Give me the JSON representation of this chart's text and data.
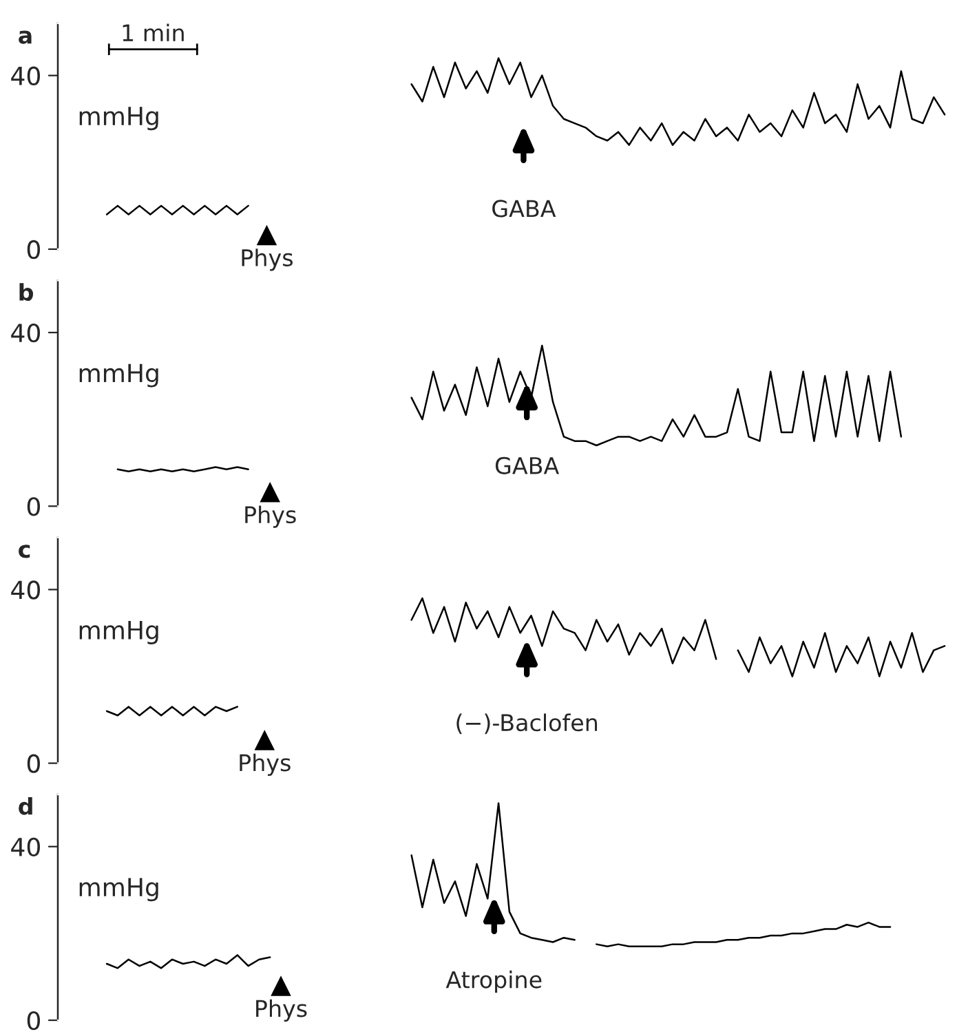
{
  "chart_data": [
    {
      "type": "line",
      "title": "a",
      "tick_labels": "y",
      "ylim": [
        0,
        52
      ],
      "yticks": [
        0,
        40
      ],
      "categories": [
        null,
        null,
        null,
        null,
        null,
        null,
        null,
        null,
        null,
        null,
        null,
        null,
        null,
        null,
        null,
        null,
        null,
        null,
        null,
        null,
        null,
        null,
        null,
        null,
        null,
        null,
        null,
        null,
        null,
        null,
        null,
        null,
        null,
        null,
        null,
        null,
        null,
        null,
        null,
        null,
        null,
        null,
        null,
        null,
        null,
        null,
        null,
        null,
        null,
        null,
        null,
        null,
        null,
        null,
        null,
        null,
        null,
        null,
        null,
        null,
        null,
        null,
        null,
        null,
        null,
        null,
        null,
        null,
        null,
        null,
        null,
        null,
        null,
        null,
        null,
        null,
        null,
        null,
        null,
        null,
        null,
        null
      ],
      "series": [
        {
          "color": "#000000",
          "values": [
            null,
            null,
            null,
            null,
            8,
            10,
            8,
            10,
            8,
            10,
            8,
            10,
            8,
            10,
            8,
            10,
            8,
            10,
            null,
            null,
            null,
            null,
            null,
            null,
            null,
            null,
            null,
            null,
            null,
            null,
            null,
            null,
            null,
            null,
            null,
            null,
            null,
            null,
            null,
            null,
            null,
            null,
            null,
            null,
            null,
            null,
            null,
            null,
            null,
            null,
            null,
            null,
            null,
            null,
            null,
            null,
            null,
            null,
            null,
            null,
            null,
            null,
            null,
            null,
            null,
            null,
            null,
            null,
            null,
            null,
            null,
            null,
            null,
            null,
            null,
            null,
            null,
            null,
            null,
            null,
            null,
            null
          ]
        },
        {
          "color": "#000000",
          "values": [
            null,
            null,
            null,
            null,
            null,
            null,
            null,
            null,
            null,
            null,
            null,
            null,
            null,
            null,
            null,
            null,
            null,
            null,
            null,
            null,
            null,
            null,
            null,
            null,
            null,
            null,
            null,
            null,
            null,
            null,
            null,
            null,
            38,
            34,
            42,
            35,
            43,
            37,
            41,
            36,
            44,
            38,
            43,
            35,
            40,
            33,
            30,
            29,
            28,
            26,
            25,
            27,
            24,
            28,
            25,
            29,
            24,
            27,
            25,
            30,
            26,
            28,
            25,
            31,
            27,
            29,
            26,
            32,
            28,
            36,
            29,
            31,
            27,
            38,
            30,
            33,
            28,
            41,
            30,
            29,
            35,
            31
          ]
        }
      ],
      "annotations": [
        "mmHg",
        "Phys",
        "GABA",
        "1 min"
      ]
    },
    {
      "type": "line",
      "title": "b",
      "tick_labels": "y",
      "ylim": [
        0,
        52
      ],
      "yticks": [
        0,
        40
      ],
      "categories": [
        null,
        null,
        null,
        null,
        null,
        null,
        null,
        null,
        null,
        null,
        null,
        null,
        null,
        null,
        null,
        null,
        null,
        null,
        null,
        null,
        null,
        null,
        null,
        null,
        null,
        null,
        null,
        null,
        null,
        null,
        null,
        null,
        null,
        null,
        null,
        null,
        null,
        null,
        null,
        null,
        null,
        null,
        null,
        null,
        null,
        null,
        null,
        null,
        null,
        null,
        null,
        null,
        null,
        null,
        null,
        null,
        null,
        null,
        null,
        null,
        null,
        null,
        null,
        null,
        null,
        null,
        null,
        null,
        null,
        null,
        null,
        null,
        null,
        null,
        null,
        null,
        null,
        null,
        null,
        null,
        null,
        null
      ],
      "series": [
        {
          "color": "#000000",
          "values": [
            null,
            null,
            null,
            null,
            null,
            8.5,
            8,
            8.5,
            8,
            8.5,
            8,
            8.5,
            8,
            8.5,
            9,
            8.5,
            9,
            8.5,
            null,
            null,
            null,
            null,
            null,
            null,
            null,
            null,
            null,
            null,
            null,
            null,
            null,
            null,
            null,
            null,
            null,
            null,
            null,
            null,
            null,
            null,
            null,
            null,
            null,
            null,
            null,
            null,
            null,
            null,
            null,
            null,
            null,
            null,
            null,
            null,
            null,
            null,
            null,
            null,
            null,
            null,
            null,
            null,
            null,
            null,
            null,
            null,
            null,
            null,
            null,
            null,
            null,
            null,
            null,
            null,
            null,
            null,
            null,
            null,
            null,
            null,
            null,
            null
          ]
        },
        {
          "color": "#000000",
          "values": [
            null,
            null,
            null,
            null,
            null,
            null,
            null,
            null,
            null,
            null,
            null,
            null,
            null,
            null,
            null,
            null,
            null,
            null,
            null,
            null,
            null,
            null,
            null,
            null,
            null,
            null,
            null,
            null,
            null,
            null,
            null,
            null,
            25,
            20,
            31,
            22,
            28,
            21,
            32,
            23,
            34,
            24,
            31,
            25,
            37,
            24,
            16,
            15,
            15,
            14,
            15,
            16,
            16,
            15,
            16,
            15,
            20,
            16,
            21,
            16,
            16,
            17,
            27,
            16,
            15,
            31,
            17,
            17,
            31,
            15,
            30,
            16,
            31,
            16,
            30,
            15,
            31,
            16,
            null,
            null,
            null,
            null
          ]
        }
      ],
      "annotations": [
        "mmHg",
        "Phys",
        "GABA"
      ]
    },
    {
      "type": "line",
      "title": "c",
      "tick_labels": "y",
      "ylim": [
        0,
        52
      ],
      "yticks": [
        0,
        40
      ],
      "categories": [
        null,
        null,
        null,
        null,
        null,
        null,
        null,
        null,
        null,
        null,
        null,
        null,
        null,
        null,
        null,
        null,
        null,
        null,
        null,
        null,
        null,
        null,
        null,
        null,
        null,
        null,
        null,
        null,
        null,
        null,
        null,
        null,
        null,
        null,
        null,
        null,
        null,
        null,
        null,
        null,
        null,
        null,
        null,
        null,
        null,
        null,
        null,
        null,
        null,
        null,
        null,
        null,
        null,
        null,
        null,
        null,
        null,
        null,
        null,
        null,
        null,
        null,
        null,
        null,
        null,
        null,
        null,
        null,
        null,
        null,
        null,
        null,
        null,
        null,
        null,
        null,
        null,
        null,
        null,
        null,
        null,
        null
      ],
      "series": [
        {
          "color": "#000000",
          "values": [
            null,
            null,
            null,
            null,
            12,
            11,
            13,
            11,
            13,
            11,
            13,
            11,
            13,
            11,
            13,
            12,
            13,
            null,
            null,
            null,
            null,
            null,
            null,
            null,
            null,
            null,
            null,
            null,
            null,
            null,
            null,
            null,
            null,
            null,
            null,
            null,
            null,
            null,
            null,
            null,
            null,
            null,
            null,
            null,
            null,
            null,
            null,
            null,
            null,
            null,
            null,
            null,
            null,
            null,
            null,
            null,
            null,
            null,
            null,
            null,
            null,
            null,
            null,
            null,
            null,
            null,
            null,
            null,
            null,
            null,
            null,
            null,
            null,
            null,
            null,
            null,
            null,
            null,
            null,
            null,
            null,
            null
          ]
        },
        {
          "color": "#000000",
          "values": [
            null,
            null,
            null,
            null,
            null,
            null,
            null,
            null,
            null,
            null,
            null,
            null,
            null,
            null,
            null,
            null,
            null,
            null,
            null,
            null,
            null,
            null,
            null,
            null,
            null,
            null,
            null,
            null,
            null,
            null,
            null,
            null,
            33,
            38,
            30,
            36,
            28,
            37,
            31,
            35,
            29,
            36,
            30,
            34,
            27,
            35,
            31,
            30,
            26,
            33,
            28,
            32,
            25,
            30,
            27,
            31,
            23,
            29,
            26,
            33,
            24,
            null,
            null,
            null,
            null,
            null,
            null,
            null,
            null,
            null,
            null,
            null,
            null,
            null,
            null,
            null,
            null,
            null,
            null,
            null,
            null,
            null
          ]
        },
        {
          "color": "#000000",
          "values": [
            null,
            null,
            null,
            null,
            null,
            null,
            null,
            null,
            null,
            null,
            null,
            null,
            null,
            null,
            null,
            null,
            null,
            null,
            null,
            null,
            null,
            null,
            null,
            null,
            null,
            null,
            null,
            null,
            null,
            null,
            null,
            null,
            null,
            null,
            null,
            null,
            null,
            null,
            null,
            null,
            null,
            null,
            null,
            null,
            null,
            null,
            null,
            null,
            null,
            null,
            null,
            null,
            null,
            null,
            null,
            null,
            null,
            null,
            null,
            null,
            null,
            null,
            26,
            21,
            29,
            23,
            27,
            20,
            28,
            22,
            30,
            21,
            27,
            23,
            29,
            20,
            28,
            22,
            30,
            21,
            26,
            27
          ]
        }
      ],
      "annotations": [
        "mmHg",
        "Phys",
        "(−)-Baclofen"
      ]
    },
    {
      "type": "line",
      "title": "d",
      "tick_labels": "y",
      "ylim": [
        0,
        52
      ],
      "yticks": [
        0,
        40
      ],
      "categories": [
        null,
        null,
        null,
        null,
        null,
        null,
        null,
        null,
        null,
        null,
        null,
        null,
        null,
        null,
        null,
        null,
        null,
        null,
        null,
        null,
        null,
        null,
        null,
        null,
        null,
        null,
        null,
        null,
        null,
        null,
        null,
        null,
        null,
        null,
        null,
        null,
        null,
        null,
        null,
        null,
        null,
        null,
        null,
        null,
        null,
        null,
        null,
        null,
        null,
        null,
        null,
        null,
        null,
        null,
        null,
        null,
        null,
        null,
        null,
        null,
        null,
        null,
        null,
        null,
        null,
        null,
        null,
        null,
        null,
        null,
        null,
        null,
        null,
        null,
        null,
        null,
        null,
        null,
        null,
        null,
        null,
        null
      ],
      "series": [
        {
          "color": "#000000",
          "values": [
            null,
            null,
            null,
            null,
            13,
            12,
            14,
            12.5,
            13.5,
            12,
            14,
            13,
            13.5,
            12.5,
            14,
            13,
            15,
            12.5,
            14,
            14.5,
            null,
            null,
            null,
            null,
            null,
            null,
            null,
            null,
            null,
            null,
            null,
            null,
            null,
            null,
            null,
            null,
            null,
            null,
            null,
            null,
            null,
            null,
            null,
            null,
            null,
            null,
            null,
            null,
            null,
            null,
            null,
            null,
            null,
            null,
            null,
            null,
            null,
            null,
            null,
            null,
            null,
            null,
            null,
            null,
            null,
            null,
            null,
            null,
            null,
            null,
            null,
            null,
            null,
            null,
            null,
            null,
            null,
            null,
            null,
            null,
            null,
            null
          ]
        },
        {
          "color": "#000000",
          "values": [
            null,
            null,
            null,
            null,
            null,
            null,
            null,
            null,
            null,
            null,
            null,
            null,
            null,
            null,
            null,
            null,
            null,
            null,
            null,
            null,
            null,
            null,
            null,
            null,
            null,
            null,
            null,
            null,
            null,
            null,
            null,
            null,
            38,
            26,
            37,
            27,
            32,
            24,
            36,
            28,
            50,
            25,
            20,
            19,
            18.5,
            18,
            19,
            18.5,
            null,
            null,
            null,
            null,
            null,
            null,
            null,
            null,
            null,
            null,
            null,
            null,
            null,
            null,
            null,
            null,
            null,
            null,
            null,
            null,
            null,
            null,
            null,
            null,
            null,
            null,
            null,
            null,
            null,
            null,
            null,
            null,
            null,
            null
          ]
        },
        {
          "color": "#000000",
          "values": [
            null,
            null,
            null,
            null,
            null,
            null,
            null,
            null,
            null,
            null,
            null,
            null,
            null,
            null,
            null,
            null,
            null,
            null,
            null,
            null,
            null,
            null,
            null,
            null,
            null,
            null,
            null,
            null,
            null,
            null,
            null,
            null,
            null,
            null,
            null,
            null,
            null,
            null,
            null,
            null,
            null,
            null,
            null,
            null,
            null,
            null,
            null,
            null,
            null,
            17.5,
            17,
            17.5,
            17,
            17,
            17,
            17,
            17.5,
            17.5,
            18,
            18,
            18,
            18.5,
            18.5,
            19,
            19,
            19.5,
            19.5,
            20,
            20,
            20.5,
            21,
            21,
            22,
            21.5,
            22.5,
            21.5,
            21.5,
            null,
            null,
            null,
            null,
            null
          ]
        }
      ],
      "annotations": [
        "mmHg",
        "Phys",
        "Atropine"
      ]
    }
  ]
}
